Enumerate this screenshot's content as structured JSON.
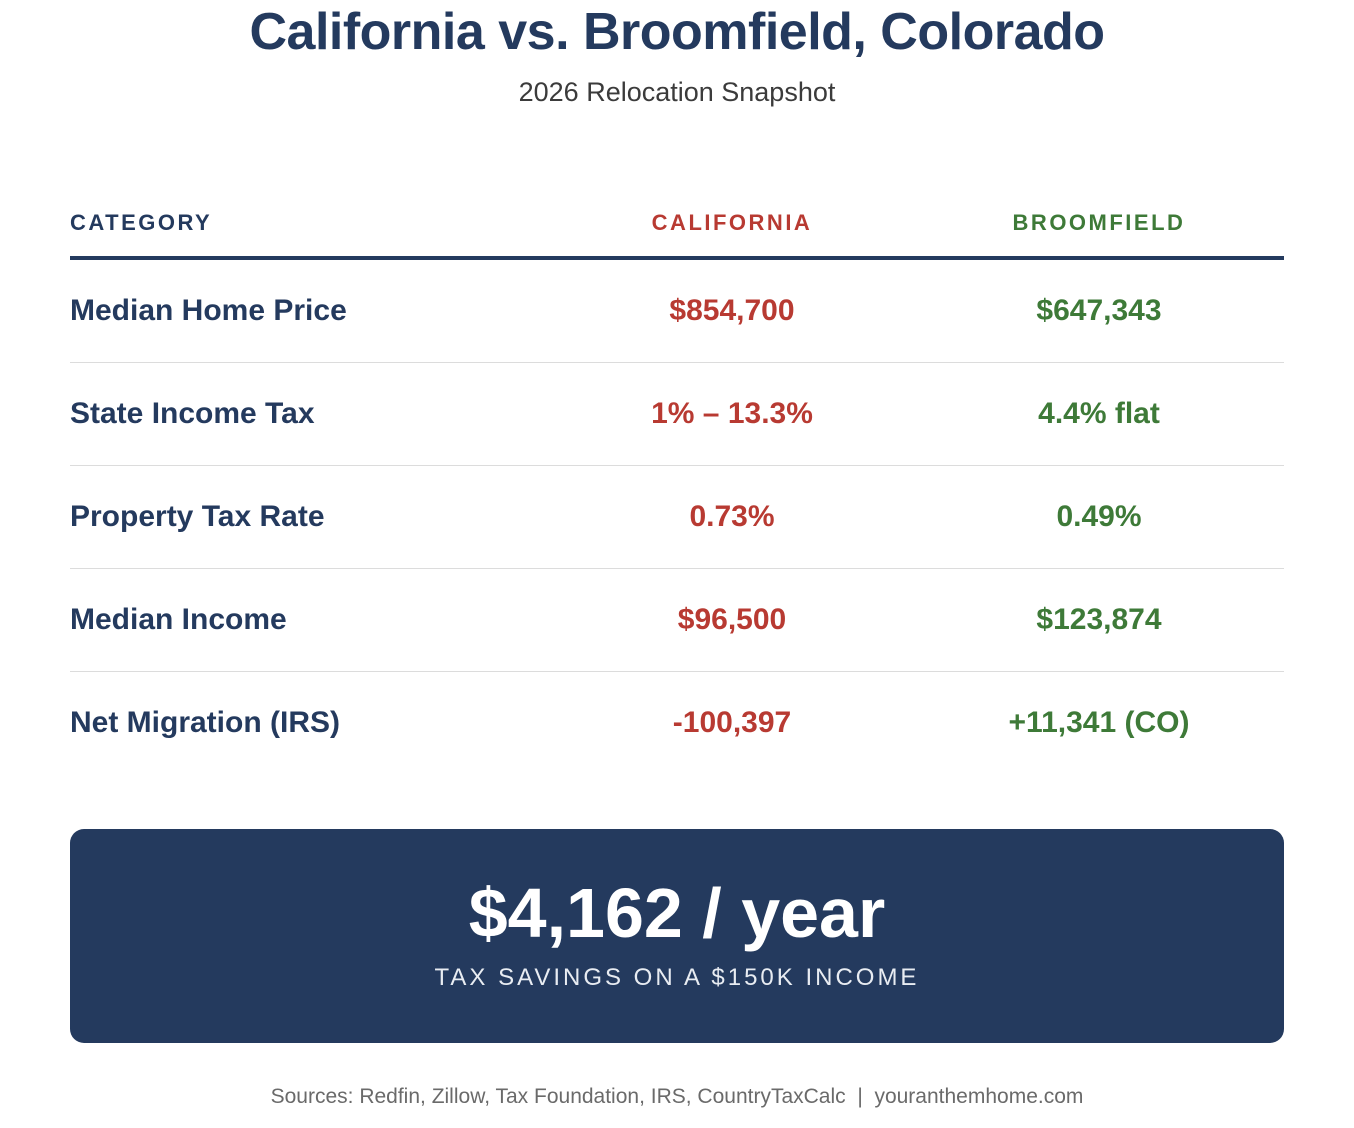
{
  "header": {
    "title": "California vs. Broomfield, Colorado",
    "subtitle": "2026 Relocation Snapshot"
  },
  "table": {
    "columns": [
      "CATEGORY",
      "CALIFORNIA",
      "BROOMFIELD"
    ],
    "rows": [
      {
        "category": "Median Home Price",
        "california": "$854,700",
        "broomfield": "$647,343"
      },
      {
        "category": "State Income Tax",
        "california": "1% – 13.3%",
        "broomfield": "4.4% flat"
      },
      {
        "category": "Property Tax Rate",
        "california": "0.73%",
        "broomfield": "0.49%"
      },
      {
        "category": "Median Income",
        "california": "$96,500",
        "broomfield": "$123,874"
      },
      {
        "category": "Net Migration (IRS)",
        "california": "-100,397",
        "broomfield": "+11,341 (CO)"
      }
    ]
  },
  "banner": {
    "amount": "$4,162 / year",
    "caption": "TAX SAVINGS ON A $150K INCOME"
  },
  "footer": {
    "sources": "Sources: Redfin, Zillow, Tax Foundation, IRS, CountryTaxCalc  |  youranthemhome.com"
  },
  "colors": {
    "navy": "#243a5e",
    "california_red": "#b83a32",
    "broomfield_green": "#3e7a38"
  }
}
